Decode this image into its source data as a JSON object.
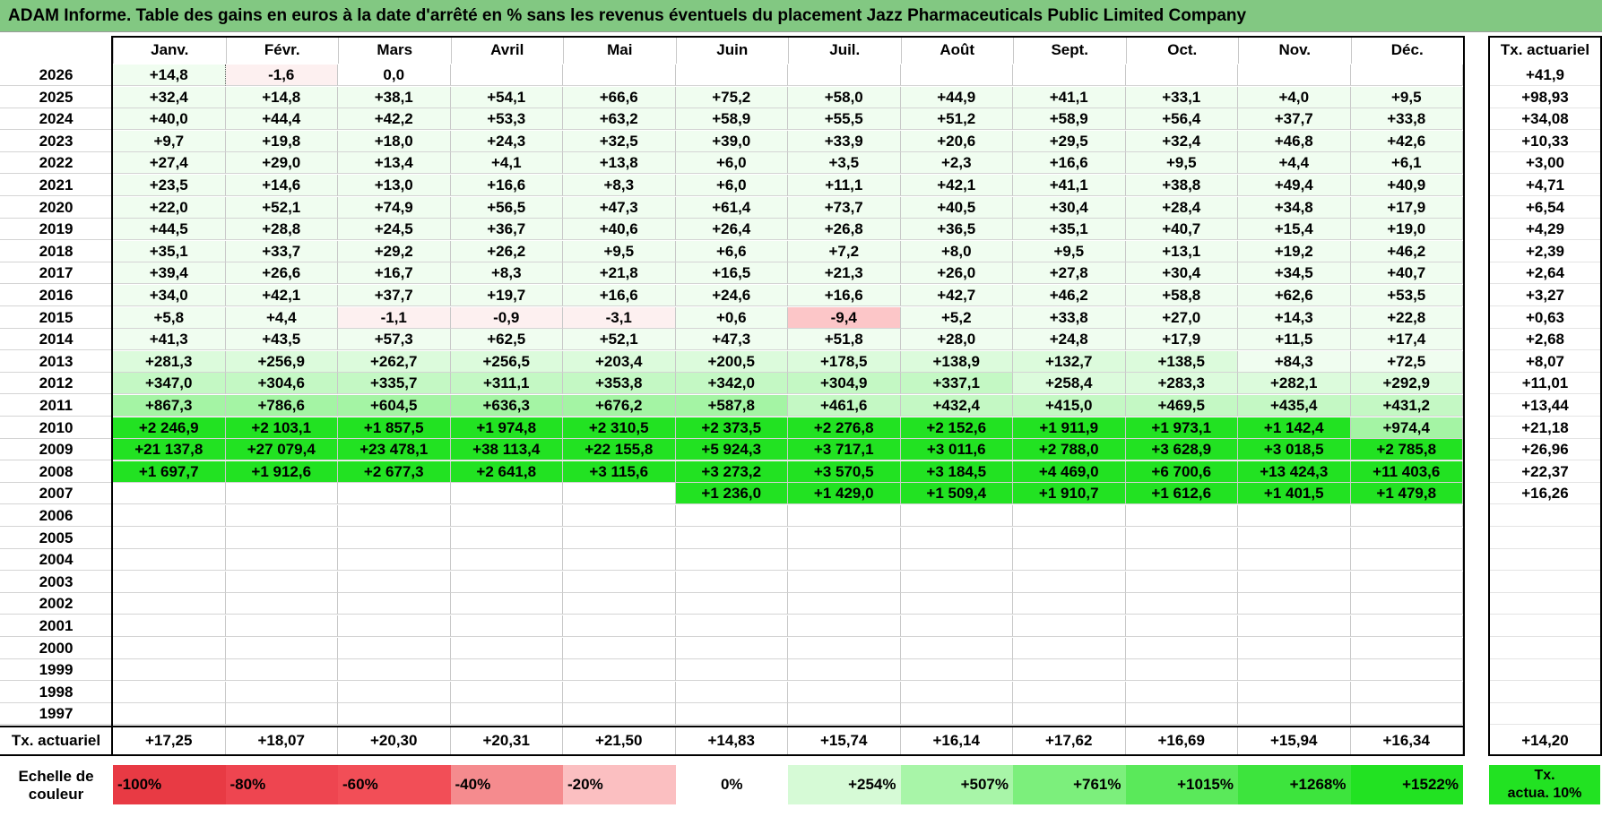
{
  "title": "ADAM Informe. Table des gains en euros à la date d'arrêté en % sans les revenus éventuels du placement Jazz Pharmaceuticals Public Limited Company",
  "months": [
    "Janv.",
    "Févr.",
    "Mars",
    "Avril",
    "Mai",
    "Juin",
    "Juil.",
    "Août",
    "Sept.",
    "Oct.",
    "Nov.",
    "Déc."
  ],
  "actuarial_header": "Tx. actuariel",
  "rows": [
    {
      "year": "2026",
      "values": [
        "+14,8",
        "-1,6",
        "0,0",
        "",
        "",
        "",
        "",
        "",
        "",
        "",
        "",
        ""
      ],
      "actuarial": "+41,9"
    },
    {
      "year": "2025",
      "values": [
        "+32,4",
        "+14,8",
        "+38,1",
        "+54,1",
        "+66,6",
        "+75,2",
        "+58,0",
        "+44,9",
        "+41,1",
        "+33,1",
        "+4,0",
        "+9,5"
      ],
      "actuarial": "+98,93"
    },
    {
      "year": "2024",
      "values": [
        "+40,0",
        "+44,4",
        "+42,2",
        "+53,3",
        "+63,2",
        "+58,9",
        "+55,5",
        "+51,2",
        "+58,9",
        "+56,4",
        "+37,7",
        "+33,8"
      ],
      "actuarial": "+34,08"
    },
    {
      "year": "2023",
      "values": [
        "+9,7",
        "+19,8",
        "+18,0",
        "+24,3",
        "+32,5",
        "+39,0",
        "+33,9",
        "+20,6",
        "+29,5",
        "+32,4",
        "+46,8",
        "+42,6"
      ],
      "actuarial": "+10,33"
    },
    {
      "year": "2022",
      "values": [
        "+27,4",
        "+29,0",
        "+13,4",
        "+4,1",
        "+13,8",
        "+6,0",
        "+3,5",
        "+2,3",
        "+16,6",
        "+9,5",
        "+4,4",
        "+6,1"
      ],
      "actuarial": "+3,00"
    },
    {
      "year": "2021",
      "values": [
        "+23,5",
        "+14,6",
        "+13,0",
        "+16,6",
        "+8,3",
        "+6,0",
        "+11,1",
        "+42,1",
        "+41,1",
        "+38,8",
        "+49,4",
        "+40,9"
      ],
      "actuarial": "+4,71"
    },
    {
      "year": "2020",
      "values": [
        "+22,0",
        "+52,1",
        "+74,9",
        "+56,5",
        "+47,3",
        "+61,4",
        "+73,7",
        "+40,5",
        "+30,4",
        "+28,4",
        "+34,8",
        "+17,9"
      ],
      "actuarial": "+6,54"
    },
    {
      "year": "2019",
      "values": [
        "+44,5",
        "+28,8",
        "+24,5",
        "+36,7",
        "+40,6",
        "+26,4",
        "+26,8",
        "+36,5",
        "+35,1",
        "+40,7",
        "+15,4",
        "+19,0"
      ],
      "actuarial": "+4,29"
    },
    {
      "year": "2018",
      "values": [
        "+35,1",
        "+33,7",
        "+29,2",
        "+26,2",
        "+9,5",
        "+6,6",
        "+7,2",
        "+8,0",
        "+9,5",
        "+13,1",
        "+19,2",
        "+46,2"
      ],
      "actuarial": "+2,39"
    },
    {
      "year": "2017",
      "values": [
        "+39,4",
        "+26,6",
        "+16,7",
        "+8,3",
        "+21,8",
        "+16,5",
        "+21,3",
        "+26,0",
        "+27,8",
        "+30,4",
        "+34,5",
        "+40,7"
      ],
      "actuarial": "+2,64"
    },
    {
      "year": "2016",
      "values": [
        "+34,0",
        "+42,1",
        "+37,7",
        "+19,7",
        "+16,6",
        "+24,6",
        "+16,6",
        "+42,7",
        "+46,2",
        "+58,8",
        "+62,6",
        "+53,5"
      ],
      "actuarial": "+3,27"
    },
    {
      "year": "2015",
      "values": [
        "+5,8",
        "+4,4",
        "-1,1",
        "-0,9",
        "-3,1",
        "+0,6",
        "-9,4",
        "+5,2",
        "+33,8",
        "+27,0",
        "+14,3",
        "+22,8"
      ],
      "actuarial": "+0,63"
    },
    {
      "year": "2014",
      "values": [
        "+41,3",
        "+43,5",
        "+57,3",
        "+62,5",
        "+52,1",
        "+47,3",
        "+51,8",
        "+28,0",
        "+24,8",
        "+17,9",
        "+11,5",
        "+17,4"
      ],
      "actuarial": "+2,68"
    },
    {
      "year": "2013",
      "values": [
        "+281,3",
        "+256,9",
        "+262,7",
        "+256,5",
        "+203,4",
        "+200,5",
        "+178,5",
        "+138,9",
        "+132,7",
        "+138,5",
        "+84,3",
        "+72,5"
      ],
      "actuarial": "+8,07"
    },
    {
      "year": "2012",
      "values": [
        "+347,0",
        "+304,6",
        "+335,7",
        "+311,1",
        "+353,8",
        "+342,0",
        "+304,9",
        "+337,1",
        "+258,4",
        "+283,3",
        "+282,1",
        "+292,9"
      ],
      "actuarial": "+11,01"
    },
    {
      "year": "2011",
      "values": [
        "+867,3",
        "+786,6",
        "+604,5",
        "+636,3",
        "+676,2",
        "+587,8",
        "+461,6",
        "+432,4",
        "+415,0",
        "+469,5",
        "+435,4",
        "+431,2"
      ],
      "actuarial": "+13,44"
    },
    {
      "year": "2010",
      "values": [
        "+2 246,9",
        "+2 103,1",
        "+1 857,5",
        "+1 974,8",
        "+2 310,5",
        "+2 373,5",
        "+2 276,8",
        "+2 152,6",
        "+1 911,9",
        "+1 973,1",
        "+1 142,4",
        "+974,4"
      ],
      "actuarial": "+21,18"
    },
    {
      "year": "2009",
      "values": [
        "+21 137,8",
        "+27 079,4",
        "+23 478,1",
        "+38 113,4",
        "+22 155,8",
        "+5 924,3",
        "+3 717,1",
        "+3 011,6",
        "+2 788,0",
        "+3 628,9",
        "+3 018,5",
        "+2 785,8"
      ],
      "actuarial": "+26,96"
    },
    {
      "year": "2008",
      "values": [
        "+1 697,7",
        "+1 912,6",
        "+2 677,3",
        "+2 641,8",
        "+3 115,6",
        "+3 273,2",
        "+3 570,5",
        "+3 184,5",
        "+4 469,0",
        "+6 700,6",
        "+13 424,3",
        "+11 403,6"
      ],
      "actuarial": "+22,37"
    },
    {
      "year": "2007",
      "values": [
        "",
        "",
        "",
        "",
        "",
        "+1 236,0",
        "+1 429,0",
        "+1 509,4",
        "+1 910,7",
        "+1 612,6",
        "+1 401,5",
        "+1 479,8"
      ],
      "actuarial": "+16,26"
    },
    {
      "year": "2006",
      "values": [
        "",
        "",
        "",
        "",
        "",
        "",
        "",
        "",
        "",
        "",
        "",
        ""
      ],
      "actuarial": ""
    },
    {
      "year": "2005",
      "values": [
        "",
        "",
        "",
        "",
        "",
        "",
        "",
        "",
        "",
        "",
        "",
        ""
      ],
      "actuarial": ""
    },
    {
      "year": "2004",
      "values": [
        "",
        "",
        "",
        "",
        "",
        "",
        "",
        "",
        "",
        "",
        "",
        ""
      ],
      "actuarial": ""
    },
    {
      "year": "2003",
      "values": [
        "",
        "",
        "",
        "",
        "",
        "",
        "",
        "",
        "",
        "",
        "",
        ""
      ],
      "actuarial": ""
    },
    {
      "year": "2002",
      "values": [
        "",
        "",
        "",
        "",
        "",
        "",
        "",
        "",
        "",
        "",
        "",
        ""
      ],
      "actuarial": ""
    },
    {
      "year": "2001",
      "values": [
        "",
        "",
        "",
        "",
        "",
        "",
        "",
        "",
        "",
        "",
        "",
        ""
      ],
      "actuarial": ""
    },
    {
      "year": "2000",
      "values": [
        "",
        "",
        "",
        "",
        "",
        "",
        "",
        "",
        "",
        "",
        "",
        ""
      ],
      "actuarial": ""
    },
    {
      "year": "1999",
      "values": [
        "",
        "",
        "",
        "",
        "",
        "",
        "",
        "",
        "",
        "",
        "",
        ""
      ],
      "actuarial": ""
    },
    {
      "year": "1998",
      "values": [
        "",
        "",
        "",
        "",
        "",
        "",
        "",
        "",
        "",
        "",
        "",
        ""
      ],
      "actuarial": ""
    },
    {
      "year": "1997",
      "values": [
        "",
        "",
        "",
        "",
        "",
        "",
        "",
        "",
        "",
        "",
        "",
        ""
      ],
      "actuarial": ""
    }
  ],
  "totals": {
    "label": "Tx. actuariel",
    "values": [
      "+17,25",
      "+18,07",
      "+20,30",
      "+20,31",
      "+21,50",
      "+14,83",
      "+15,74",
      "+16,14",
      "+17,62",
      "+16,69",
      "+15,94",
      "+16,34"
    ],
    "overall": "+14,20"
  },
  "scale": {
    "label_line1": "Echelle de",
    "label_line2": "couleur",
    "steps": [
      {
        "label": "-100%",
        "color": "#e83a44",
        "align": "left"
      },
      {
        "label": "-80%",
        "color": "#ee4550",
        "align": "left"
      },
      {
        "label": "-60%",
        "color": "#f24e57",
        "align": "left"
      },
      {
        "label": "-40%",
        "color": "#f58b8e",
        "align": "left"
      },
      {
        "label": "-20%",
        "color": "#fbbfc1",
        "align": "left"
      },
      {
        "label": "0%",
        "color": "#ffffff",
        "align": "center"
      },
      {
        "label": "+254%",
        "color": "#d6fad6",
        "align": "right"
      },
      {
        "label": "+507%",
        "color": "#a8f5a8",
        "align": "right"
      },
      {
        "label": "+761%",
        "color": "#7cef7c",
        "align": "right"
      },
      {
        "label": "+1015%",
        "color": "#5ae95a",
        "align": "right"
      },
      {
        "label": "+1268%",
        "color": "#3de43d",
        "align": "right"
      },
      {
        "label": "+1522%",
        "color": "#22e222",
        "align": "right"
      }
    ],
    "actuarial_line1": "Tx.",
    "actuarial_line2": "actua. 10%"
  }
}
